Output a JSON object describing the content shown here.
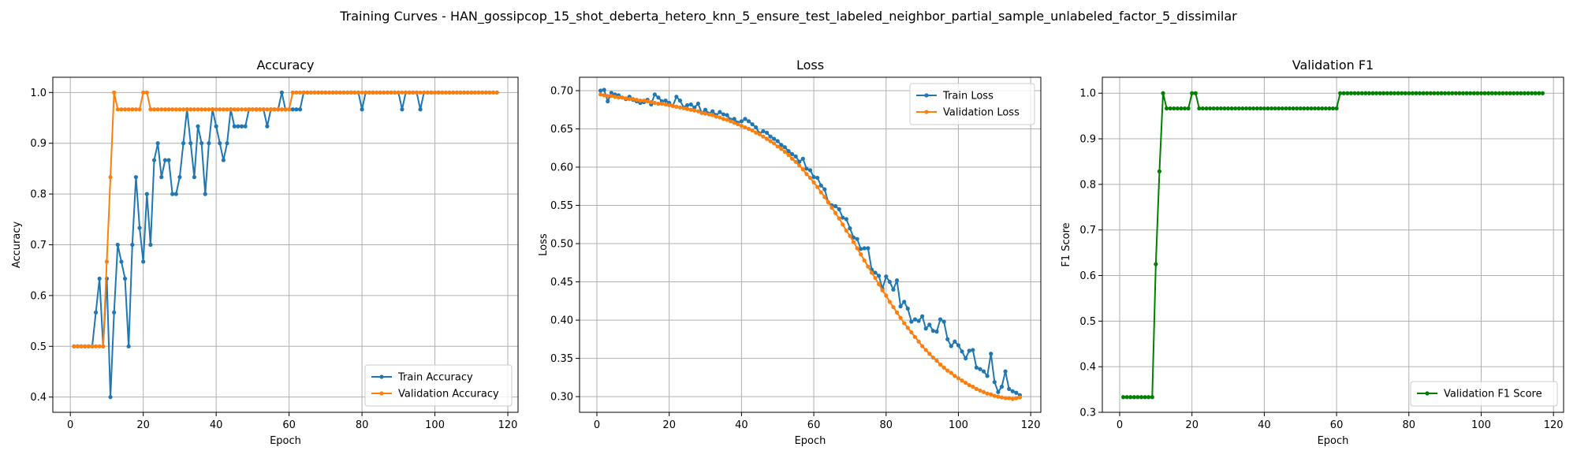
{
  "figure": {
    "suptitle": "Training Curves - HAN_gossipcop_15_shot_deberta_hetero_knn_5_ensure_test_labeled_neighbor_partial_sample_unlabeled_factor_5_dissimilar"
  },
  "colors": {
    "blue": "#1f77b4",
    "orange": "#ff7f0e",
    "green": "#008000"
  },
  "chart_data": [
    {
      "type": "line",
      "title": "Accuracy",
      "xlabel": "Epoch",
      "ylabel": "Accuracy",
      "xlim": [
        -4.8,
        122.8
      ],
      "ylim": [
        0.37,
        1.03
      ],
      "xticks": [
        0,
        20,
        40,
        60,
        80,
        100,
        120
      ],
      "yticks": [
        0.4,
        0.5,
        0.6,
        0.7,
        0.8,
        0.9,
        1.0
      ],
      "ytick_labels": [
        "0.4",
        "0.5",
        "0.6",
        "0.7",
        "0.8",
        "0.9",
        "1.0"
      ],
      "grid": true,
      "legend_loc": "lower right",
      "series": [
        {
          "name": "Train Accuracy",
          "color": "#1f77b4",
          "values": [
            0.5,
            0.5,
            0.5,
            0.5,
            0.5,
            0.5,
            0.5667,
            0.6333,
            0.5,
            0.6333,
            0.4,
            0.5667,
            0.7,
            0.6667,
            0.6333,
            0.5,
            0.7,
            0.8333,
            0.7333,
            0.6667,
            0.8,
            0.7,
            0.8667,
            0.9,
            0.8333,
            0.8667,
            0.8667,
            0.8,
            0.8,
            0.8333,
            0.9,
            0.9667,
            0.9,
            0.8333,
            0.9333,
            0.9,
            0.8,
            0.9,
            0.9667,
            0.9333,
            0.9,
            0.8667,
            0.9,
            0.9667,
            0.9333,
            0.9333,
            0.9333,
            0.9333,
            0.9667,
            0.9667,
            0.9667,
            0.9667,
            0.9667,
            0.9333,
            0.9667,
            0.9667,
            0.9667,
            1.0,
            0.9667,
            0.9667,
            0.9667,
            0.9667,
            0.9667,
            1.0,
            1.0,
            1.0,
            1.0,
            1.0,
            1.0,
            1.0,
            1.0,
            1.0,
            1.0,
            1.0,
            1.0,
            1.0,
            1.0,
            1.0,
            1.0,
            0.9667,
            1.0,
            1.0,
            1.0,
            1.0,
            1.0,
            1.0,
            1.0,
            1.0,
            1.0,
            1.0,
            0.9667,
            1.0,
            1.0,
            1.0,
            1.0,
            0.9667,
            1.0,
            1.0,
            1.0,
            1.0,
            1.0,
            1.0,
            1.0,
            1.0,
            1.0,
            1.0,
            1.0,
            1.0,
            1.0,
            1.0,
            1.0,
            1.0,
            1.0,
            1.0,
            1.0,
            1.0,
            1.0
          ]
        },
        {
          "name": "Validation Accuracy",
          "color": "#ff7f0e",
          "values": [
            0.5,
            0.5,
            0.5,
            0.5,
            0.5,
            0.5,
            0.5,
            0.5,
            0.5,
            0.6667,
            0.8333,
            1.0,
            0.9667,
            0.9667,
            0.9667,
            0.9667,
            0.9667,
            0.9667,
            0.9667,
            1.0,
            1.0,
            0.9667,
            0.9667,
            0.9667,
            0.9667,
            0.9667,
            0.9667,
            0.9667,
            0.9667,
            0.9667,
            0.9667,
            0.9667,
            0.9667,
            0.9667,
            0.9667,
            0.9667,
            0.9667,
            0.9667,
            0.9667,
            0.9667,
            0.9667,
            0.9667,
            0.9667,
            0.9667,
            0.9667,
            0.9667,
            0.9667,
            0.9667,
            0.9667,
            0.9667,
            0.9667,
            0.9667,
            0.9667,
            0.9667,
            0.9667,
            0.9667,
            0.9667,
            0.9667,
            0.9667,
            0.9667,
            1.0,
            1.0,
            1.0,
            1.0,
            1.0,
            1.0,
            1.0,
            1.0,
            1.0,
            1.0,
            1.0,
            1.0,
            1.0,
            1.0,
            1.0,
            1.0,
            1.0,
            1.0,
            1.0,
            1.0,
            1.0,
            1.0,
            1.0,
            1.0,
            1.0,
            1.0,
            1.0,
            1.0,
            1.0,
            1.0,
            1.0,
            1.0,
            1.0,
            1.0,
            1.0,
            1.0,
            1.0,
            1.0,
            1.0,
            1.0,
            1.0,
            1.0,
            1.0,
            1.0,
            1.0,
            1.0,
            1.0,
            1.0,
            1.0,
            1.0,
            1.0,
            1.0,
            1.0,
            1.0,
            1.0,
            1.0,
            1.0
          ]
        }
      ]
    },
    {
      "type": "line",
      "title": "Loss",
      "xlabel": "Epoch",
      "ylabel": "Loss",
      "xlim": [
        -4.8,
        122.8
      ],
      "ylim": [
        0.2795,
        0.7175
      ],
      "xticks": [
        0,
        20,
        40,
        60,
        80,
        100,
        120
      ],
      "yticks": [
        0.3,
        0.35,
        0.4,
        0.45,
        0.5,
        0.55,
        0.6,
        0.65,
        0.7
      ],
      "ytick_labels": [
        "0.30",
        "0.35",
        "0.40",
        "0.45",
        "0.50",
        "0.55",
        "0.60",
        "0.65",
        "0.70"
      ],
      "grid": true,
      "legend_loc": "upper right",
      "series": [
        {
          "name": "Train Loss",
          "color": "#1f77b4",
          "values": [
            0.7,
            0.701,
            0.686,
            0.697,
            0.695,
            0.694,
            0.691,
            0.689,
            0.692,
            0.688,
            0.686,
            0.684,
            0.685,
            0.688,
            0.682,
            0.695,
            0.691,
            0.686,
            0.687,
            0.684,
            0.68,
            0.692,
            0.687,
            0.678,
            0.681,
            0.682,
            0.678,
            0.683,
            0.671,
            0.675,
            0.67,
            0.673,
            0.668,
            0.672,
            0.669,
            0.668,
            0.662,
            0.663,
            0.658,
            0.66,
            0.663,
            0.66,
            0.656,
            0.652,
            0.644,
            0.647,
            0.645,
            0.64,
            0.637,
            0.634,
            0.629,
            0.626,
            0.621,
            0.617,
            0.614,
            0.607,
            0.611,
            0.598,
            0.596,
            0.587,
            0.586,
            0.576,
            0.571,
            0.554,
            0.55,
            0.549,
            0.545,
            0.534,
            0.532,
            0.52,
            0.508,
            0.506,
            0.493,
            0.494,
            0.494,
            0.466,
            0.462,
            0.458,
            0.441,
            0.457,
            0.45,
            0.44,
            0.452,
            0.418,
            0.424,
            0.415,
            0.398,
            0.401,
            0.399,
            0.405,
            0.389,
            0.394,
            0.386,
            0.385,
            0.401,
            0.398,
            0.375,
            0.366,
            0.372,
            0.367,
            0.359,
            0.35,
            0.36,
            0.361,
            0.338,
            0.336,
            0.333,
            0.327,
            0.356,
            0.319,
            0.306,
            0.313,
            0.333,
            0.31,
            0.307,
            0.305,
            0.302
          ]
        },
        {
          "name": "Validation Loss",
          "color": "#ff7f0e",
          "values": [
            0.695,
            0.694,
            0.693,
            0.693,
            0.692,
            0.691,
            0.691,
            0.69,
            0.689,
            0.689,
            0.688,
            0.687,
            0.687,
            0.686,
            0.685,
            0.684,
            0.683,
            0.683,
            0.682,
            0.681,
            0.68,
            0.679,
            0.678,
            0.677,
            0.676,
            0.675,
            0.674,
            0.673,
            0.671,
            0.67,
            0.669,
            0.668,
            0.666,
            0.665,
            0.663,
            0.662,
            0.66,
            0.658,
            0.656,
            0.654,
            0.652,
            0.65,
            0.648,
            0.645,
            0.643,
            0.64,
            0.637,
            0.634,
            0.631,
            0.627,
            0.624,
            0.62,
            0.616,
            0.611,
            0.607,
            0.602,
            0.597,
            0.591,
            0.586,
            0.58,
            0.574,
            0.567,
            0.561,
            0.554,
            0.547,
            0.54,
            0.533,
            0.525,
            0.517,
            0.51,
            0.502,
            0.494,
            0.486,
            0.478,
            0.47,
            0.462,
            0.455,
            0.447,
            0.439,
            0.432,
            0.424,
            0.417,
            0.41,
            0.403,
            0.396,
            0.39,
            0.384,
            0.378,
            0.372,
            0.366,
            0.361,
            0.356,
            0.351,
            0.347,
            0.342,
            0.338,
            0.334,
            0.331,
            0.327,
            0.324,
            0.321,
            0.318,
            0.315,
            0.313,
            0.31,
            0.308,
            0.306,
            0.304,
            0.303,
            0.301,
            0.3,
            0.299,
            0.298,
            0.298,
            0.297,
            0.298,
            0.299
          ]
        }
      ]
    },
    {
      "type": "line",
      "title": "Validation F1",
      "xlabel": "Epoch",
      "ylabel": "F1 Score",
      "xlim": [
        -4.8,
        122.8
      ],
      "ylim": [
        0.3,
        1.035
      ],
      "xticks": [
        0,
        20,
        40,
        60,
        80,
        100,
        120
      ],
      "yticks": [
        0.3,
        0.4,
        0.5,
        0.6,
        0.7,
        0.8,
        0.9,
        1.0
      ],
      "ytick_labels": [
        "0.3",
        "0.4",
        "0.5",
        "0.6",
        "0.7",
        "0.8",
        "0.9",
        "1.0"
      ],
      "grid": true,
      "legend_loc": "lower right",
      "series": [
        {
          "name": "Validation F1 Score",
          "color": "#008000",
          "values": [
            0.3333,
            0.3333,
            0.3333,
            0.3333,
            0.3333,
            0.3333,
            0.3333,
            0.3333,
            0.3333,
            0.625,
            0.8286,
            1.0,
            0.9666,
            0.9666,
            0.9666,
            0.9666,
            0.9666,
            0.9666,
            0.9666,
            1.0,
            1.0,
            0.9666,
            0.9666,
            0.9666,
            0.9666,
            0.9666,
            0.9666,
            0.9666,
            0.9666,
            0.9666,
            0.9666,
            0.9666,
            0.9666,
            0.9666,
            0.9666,
            0.9666,
            0.9666,
            0.9666,
            0.9666,
            0.9666,
            0.9666,
            0.9666,
            0.9666,
            0.9666,
            0.9666,
            0.9666,
            0.9666,
            0.9666,
            0.9666,
            0.9666,
            0.9666,
            0.9666,
            0.9666,
            0.9666,
            0.9666,
            0.9666,
            0.9666,
            0.9666,
            0.9666,
            0.9666,
            1.0,
            1.0,
            1.0,
            1.0,
            1.0,
            1.0,
            1.0,
            1.0,
            1.0,
            1.0,
            1.0,
            1.0,
            1.0,
            1.0,
            1.0,
            1.0,
            1.0,
            1.0,
            1.0,
            1.0,
            1.0,
            1.0,
            1.0,
            1.0,
            1.0,
            1.0,
            1.0,
            1.0,
            1.0,
            1.0,
            1.0,
            1.0,
            1.0,
            1.0,
            1.0,
            1.0,
            1.0,
            1.0,
            1.0,
            1.0,
            1.0,
            1.0,
            1.0,
            1.0,
            1.0,
            1.0,
            1.0,
            1.0,
            1.0,
            1.0,
            1.0,
            1.0,
            1.0,
            1.0,
            1.0,
            1.0,
            1.0
          ]
        }
      ]
    }
  ]
}
